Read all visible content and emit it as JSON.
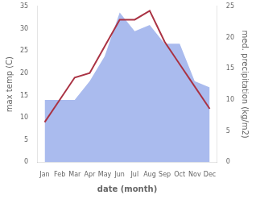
{
  "chart_data": {
    "type": "line",
    "categories": [
      "Jan",
      "Feb",
      "Mar",
      "Apr",
      "May",
      "Jun",
      "Jul",
      "Aug",
      "Sep",
      "Oct",
      "Nov",
      "Dec"
    ],
    "series": [
      {
        "type": "line",
        "color": "#aa3344",
        "values": [
          9,
          14,
          19,
          20,
          26,
          32,
          32,
          34,
          27,
          22,
          17,
          12
        ]
      },
      {
        "type": "area",
        "color": "#aabbee",
        "axis": "y2",
        "values": [
          10,
          10,
          10,
          13,
          17,
          24,
          21,
          22,
          19,
          19,
          13,
          12
        ]
      }
    ],
    "xlabel": "date (month)",
    "ylabel": "max temp (C)",
    "y2label": "med. precipitation (kg/m2)",
    "ylim": [
      0,
      35
    ],
    "yticks": [
      0,
      5,
      10,
      15,
      20,
      25,
      30,
      35
    ],
    "y2lim": [
      0,
      25
    ],
    "y2ticks": [
      0,
      5,
      10,
      15,
      20,
      25
    ],
    "grid": false
  }
}
